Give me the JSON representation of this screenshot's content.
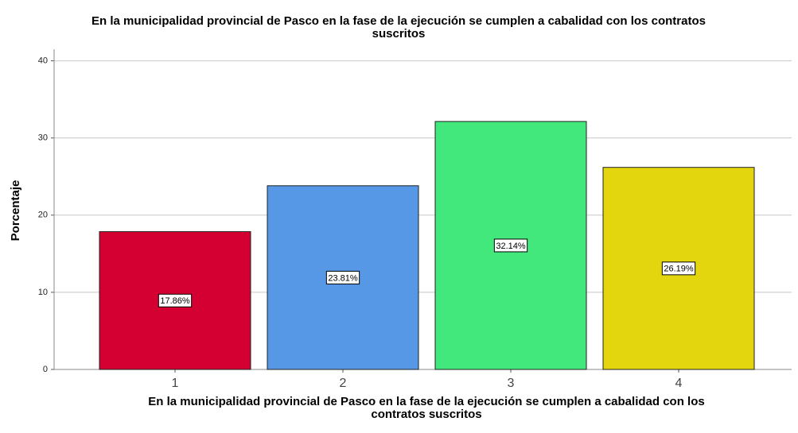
{
  "chart_data": {
    "type": "bar",
    "title": [
      "En la municipalidad provincial de Pasco en la fase de la ejecución se cumplen a cabalidad con los contratos",
      "suscritos"
    ],
    "x_label": [
      "En la municipalidad provincial de Pasco en la fase de la ejecución se cumplen a cabalidad con los",
      "contratos suscritos"
    ],
    "y_label": "Porcentaje",
    "categories": [
      "1",
      "2",
      "3",
      "4"
    ],
    "values": [
      17.86,
      23.81,
      32.14,
      26.19
    ],
    "value_labels": [
      "17.86%",
      "23.81%",
      "32.14%",
      "26.19%"
    ],
    "colors": [
      "#d50032",
      "#5698e6",
      "#43e87c",
      "#e3d60e"
    ],
    "ylim": [
      0,
      41.5
    ],
    "yticks": [
      0,
      10,
      20,
      30,
      40
    ],
    "grid": true
  }
}
